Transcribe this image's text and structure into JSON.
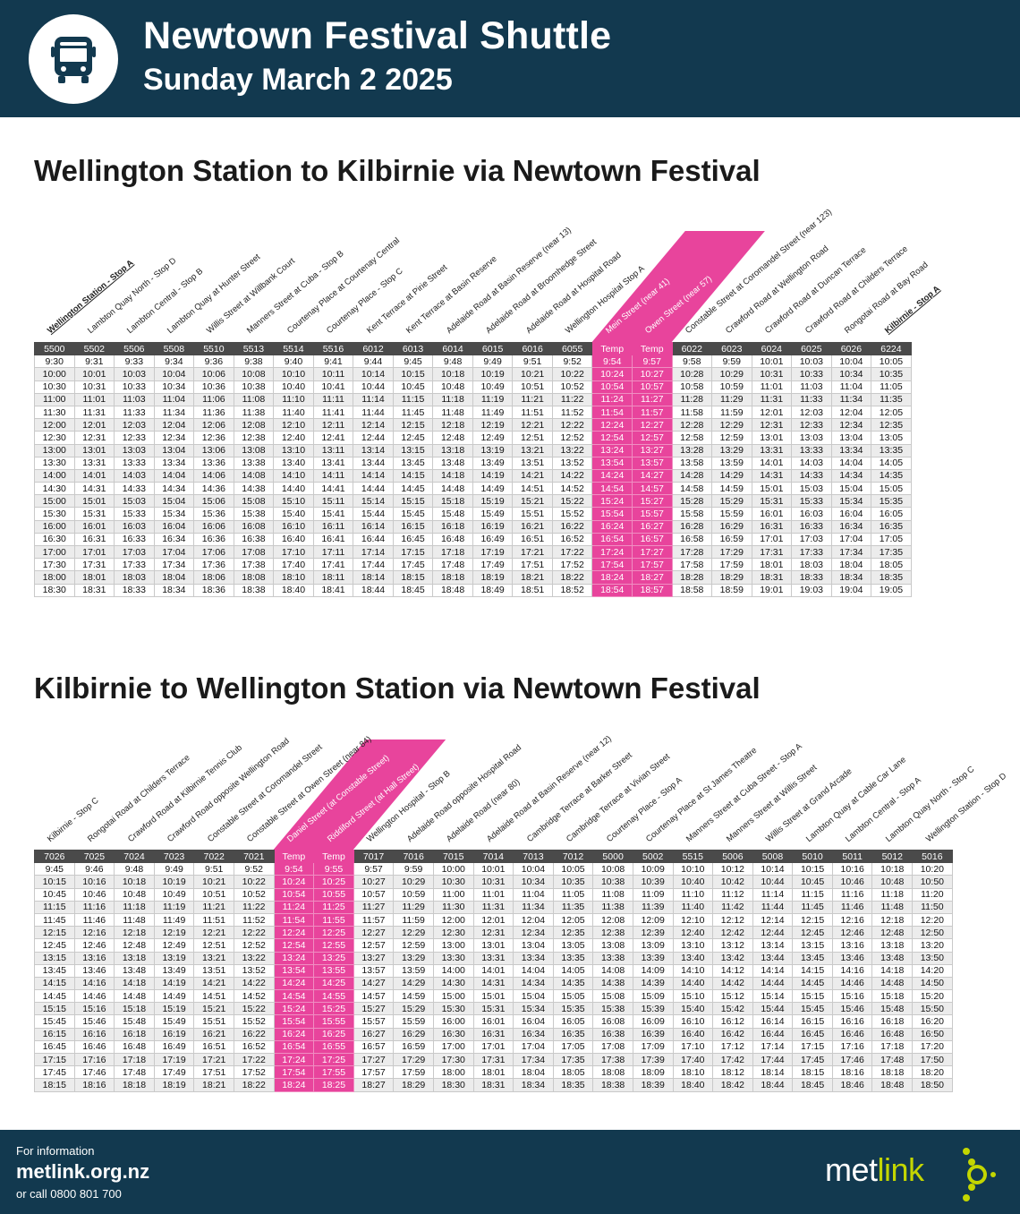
{
  "header": {
    "title": "Newtown Festival Shuttle",
    "subtitle": "Sunday March 2 2025",
    "icon": "bus-icon"
  },
  "colors": {
    "navy": "#12394f",
    "pink": "#e8449c",
    "header_row": "#4a4a4a",
    "lime": "#c3d600"
  },
  "tables": [
    {
      "title": "Wellington Station to Kilbirnie via Newtown Festival",
      "stops": [
        "Wellington Station - Stop A",
        "Lambton Quay North - Stop D",
        "Lambton Central - Stop B",
        "Lambton Quay at Hunter Street",
        "Willis Street at Willbank Court",
        "Manners Street at Cuba - Stop B",
        "Courtenay Place at Courtenay Central",
        "Courtenay Place - Stop C",
        "Kent Terrace at Pirie Street",
        "Kent Terrace at Basin Reserve",
        "Adelaide Road at Basin Reserve (near 13)",
        "Adelaide Road at Broomhedge Street",
        "Adelaide Road at Hospital Road",
        "Wellington Hospital Stop A",
        "Mein Street (near 41)",
        "Owen Street (near 57)",
        "Constable Street at Coromandel Street (near 123)",
        "Crawford Road at Wellington Road",
        "Crawford Road at Duncan Terrace",
        "Crawford Road at Childers Terrace",
        "Rongotai Road at Bay Road",
        "Kilbirnie - Stop A"
      ],
      "codes": [
        "5500",
        "5502",
        "5506",
        "5508",
        "5510",
        "5513",
        "5514",
        "5516",
        "6012",
        "6013",
        "6014",
        "6015",
        "6016",
        "6055",
        "Temp",
        "Temp",
        "6022",
        "6023",
        "6024",
        "6025",
        "6026",
        "6224"
      ],
      "rows": [
        [
          "9:30",
          "9:31",
          "9:33",
          "9:34",
          "9:36",
          "9:38",
          "9:40",
          "9:41",
          "9:44",
          "9:45",
          "9:48",
          "9:49",
          "9:51",
          "9:52",
          "9:54",
          "9:57",
          "9:58",
          "9:59",
          "10:01",
          "10:03",
          "10:04",
          "10:05"
        ],
        [
          "10:00",
          "10:01",
          "10:03",
          "10:04",
          "10:06",
          "10:08",
          "10:10",
          "10:11",
          "10:14",
          "10:15",
          "10:18",
          "10:19",
          "10:21",
          "10:22",
          "10:24",
          "10:27",
          "10:28",
          "10:29",
          "10:31",
          "10:33",
          "10:34",
          "10:35"
        ],
        [
          "10:30",
          "10:31",
          "10:33",
          "10:34",
          "10:36",
          "10:38",
          "10:40",
          "10:41",
          "10:44",
          "10:45",
          "10:48",
          "10:49",
          "10:51",
          "10:52",
          "10:54",
          "10:57",
          "10:58",
          "10:59",
          "11:01",
          "11:03",
          "11:04",
          "11:05"
        ],
        [
          "11:00",
          "11:01",
          "11:03",
          "11:04",
          "11:06",
          "11:08",
          "11:10",
          "11:11",
          "11:14",
          "11:15",
          "11:18",
          "11:19",
          "11:21",
          "11:22",
          "11:24",
          "11:27",
          "11:28",
          "11:29",
          "11:31",
          "11:33",
          "11:34",
          "11:35"
        ],
        [
          "11:30",
          "11:31",
          "11:33",
          "11:34",
          "11:36",
          "11:38",
          "11:40",
          "11:41",
          "11:44",
          "11:45",
          "11:48",
          "11:49",
          "11:51",
          "11:52",
          "11:54",
          "11:57",
          "11:58",
          "11:59",
          "12:01",
          "12:03",
          "12:04",
          "12:05"
        ],
        [
          "12:00",
          "12:01",
          "12:03",
          "12:04",
          "12:06",
          "12:08",
          "12:10",
          "12:11",
          "12:14",
          "12:15",
          "12:18",
          "12:19",
          "12:21",
          "12:22",
          "12:24",
          "12:27",
          "12:28",
          "12:29",
          "12:31",
          "12:33",
          "12:34",
          "12:35"
        ],
        [
          "12:30",
          "12:31",
          "12:33",
          "12:34",
          "12:36",
          "12:38",
          "12:40",
          "12:41",
          "12:44",
          "12:45",
          "12:48",
          "12:49",
          "12:51",
          "12:52",
          "12:54",
          "12:57",
          "12:58",
          "12:59",
          "13:01",
          "13:03",
          "13:04",
          "13:05"
        ],
        [
          "13:00",
          "13:01",
          "13:03",
          "13:04",
          "13:06",
          "13:08",
          "13:10",
          "13:11",
          "13:14",
          "13:15",
          "13:18",
          "13:19",
          "13:21",
          "13:22",
          "13:24",
          "13:27",
          "13:28",
          "13:29",
          "13:31",
          "13:33",
          "13:34",
          "13:35"
        ],
        [
          "13:30",
          "13:31",
          "13:33",
          "13:34",
          "13:36",
          "13:38",
          "13:40",
          "13:41",
          "13:44",
          "13:45",
          "13:48",
          "13:49",
          "13:51",
          "13:52",
          "13:54",
          "13:57",
          "13:58",
          "13:59",
          "14:01",
          "14:03",
          "14:04",
          "14:05"
        ],
        [
          "14:00",
          "14:01",
          "14:03",
          "14:04",
          "14:06",
          "14:08",
          "14:10",
          "14:11",
          "14:14",
          "14:15",
          "14:18",
          "14:19",
          "14:21",
          "14:22",
          "14:24",
          "14:27",
          "14:28",
          "14:29",
          "14:31",
          "14:33",
          "14:34",
          "14:35"
        ],
        [
          "14:30",
          "14:31",
          "14:33",
          "14:34",
          "14:36",
          "14:38",
          "14:40",
          "14:41",
          "14:44",
          "14:45",
          "14:48",
          "14:49",
          "14:51",
          "14:52",
          "14:54",
          "14:57",
          "14:58",
          "14:59",
          "15:01",
          "15:03",
          "15:04",
          "15:05"
        ],
        [
          "15:00",
          "15:01",
          "15:03",
          "15:04",
          "15:06",
          "15:08",
          "15:10",
          "15:11",
          "15:14",
          "15:15",
          "15:18",
          "15:19",
          "15:21",
          "15:22",
          "15:24",
          "15:27",
          "15:28",
          "15:29",
          "15:31",
          "15:33",
          "15:34",
          "15:35"
        ],
        [
          "15:30",
          "15:31",
          "15:33",
          "15:34",
          "15:36",
          "15:38",
          "15:40",
          "15:41",
          "15:44",
          "15:45",
          "15:48",
          "15:49",
          "15:51",
          "15:52",
          "15:54",
          "15:57",
          "15:58",
          "15:59",
          "16:01",
          "16:03",
          "16:04",
          "16:05"
        ],
        [
          "16:00",
          "16:01",
          "16:03",
          "16:04",
          "16:06",
          "16:08",
          "16:10",
          "16:11",
          "16:14",
          "16:15",
          "16:18",
          "16:19",
          "16:21",
          "16:22",
          "16:24",
          "16:27",
          "16:28",
          "16:29",
          "16:31",
          "16:33",
          "16:34",
          "16:35"
        ],
        [
          "16:30",
          "16:31",
          "16:33",
          "16:34",
          "16:36",
          "16:38",
          "16:40",
          "16:41",
          "16:44",
          "16:45",
          "16:48",
          "16:49",
          "16:51",
          "16:52",
          "16:54",
          "16:57",
          "16:58",
          "16:59",
          "17:01",
          "17:03",
          "17:04",
          "17:05"
        ],
        [
          "17:00",
          "17:01",
          "17:03",
          "17:04",
          "17:06",
          "17:08",
          "17:10",
          "17:11",
          "17:14",
          "17:15",
          "17:18",
          "17:19",
          "17:21",
          "17:22",
          "17:24",
          "17:27",
          "17:28",
          "17:29",
          "17:31",
          "17:33",
          "17:34",
          "17:35"
        ],
        [
          "17:30",
          "17:31",
          "17:33",
          "17:34",
          "17:36",
          "17:38",
          "17:40",
          "17:41",
          "17:44",
          "17:45",
          "17:48",
          "17:49",
          "17:51",
          "17:52",
          "17:54",
          "17:57",
          "17:58",
          "17:59",
          "18:01",
          "18:03",
          "18:04",
          "18:05"
        ],
        [
          "18:00",
          "18:01",
          "18:03",
          "18:04",
          "18:06",
          "18:08",
          "18:10",
          "18:11",
          "18:14",
          "18:15",
          "18:18",
          "18:19",
          "18:21",
          "18:22",
          "18:24",
          "18:27",
          "18:28",
          "18:29",
          "18:31",
          "18:33",
          "18:34",
          "18:35"
        ],
        [
          "18:30",
          "18:31",
          "18:33",
          "18:34",
          "18:36",
          "18:38",
          "18:40",
          "18:41",
          "18:44",
          "18:45",
          "18:48",
          "18:49",
          "18:51",
          "18:52",
          "18:54",
          "18:57",
          "18:58",
          "18:59",
          "19:01",
          "19:03",
          "19:04",
          "19:05"
        ]
      ]
    },
    {
      "title": "Kilbirnie to Wellington Station via Newtown Festival",
      "stops": [
        "Kilbirnie - Stop C",
        "Rongotai Road at Childers Terrace",
        "Crawford Road at Kilbirnie Tennis Club",
        "Crawford Road opposite Wellington Road",
        "Constable Street at Coromandel Street",
        "Constable Street at Owen Street (near 84)",
        "Daniel Street (at Constable Street)",
        "Riddiford Street (at Hall Street)",
        "Wellington Hospital - Stop B",
        "Adelaide Road opposite Hospital Road",
        "Adelaide Road (near 80)",
        "Adelaide Road at Basin Reserve (near 12)",
        "Cambridge Terrace at Barker Street",
        "Cambridge Terrace at Vivian Street",
        "Courtenay Place - Stop A",
        "Courtenay Place at St James Theatre",
        "Manners Street at Cuba Street - Stop A",
        "Manners Street at Willis Street",
        "Willis Street at Grand Arcade",
        "Lambton Quay at Cable Car Lane",
        "Lambton Central - Stop A",
        "Lambton Quay North - Stop C",
        "Wellington Station - Stop D"
      ],
      "codes": [
        "7026",
        "7025",
        "7024",
        "7023",
        "7022",
        "7021",
        "Temp",
        "Temp",
        "7017",
        "7016",
        "7015",
        "7014",
        "7013",
        "7012",
        "5000",
        "5002",
        "5515",
        "5006",
        "5008",
        "5010",
        "5011",
        "5012",
        "5016"
      ],
      "rows": [
        [
          "9:45",
          "9:46",
          "9:48",
          "9:49",
          "9:51",
          "9:52",
          "9:54",
          "9:55",
          "9:57",
          "9:59",
          "10:00",
          "10:01",
          "10:04",
          "10:05",
          "10:08",
          "10:09",
          "10:10",
          "10:12",
          "10:14",
          "10:15",
          "10:16",
          "10:18",
          "10:20"
        ],
        [
          "10:15",
          "10:16",
          "10:18",
          "10:19",
          "10:21",
          "10:22",
          "10:24",
          "10:25",
          "10:27",
          "10:29",
          "10:30",
          "10:31",
          "10:34",
          "10:35",
          "10:38",
          "10:39",
          "10:40",
          "10:42",
          "10:44",
          "10:45",
          "10:46",
          "10:48",
          "10:50"
        ],
        [
          "10:45",
          "10:46",
          "10:48",
          "10:49",
          "10:51",
          "10:52",
          "10:54",
          "10:55",
          "10:57",
          "10:59",
          "11:00",
          "11:01",
          "11:04",
          "11:05",
          "11:08",
          "11:09",
          "11:10",
          "11:12",
          "11:14",
          "11:15",
          "11:16",
          "11:18",
          "11:20"
        ],
        [
          "11:15",
          "11:16",
          "11:18",
          "11:19",
          "11:21",
          "11:22",
          "11:24",
          "11:25",
          "11:27",
          "11:29",
          "11:30",
          "11:31",
          "11:34",
          "11:35",
          "11:38",
          "11:39",
          "11:40",
          "11:42",
          "11:44",
          "11:45",
          "11:46",
          "11:48",
          "11:50"
        ],
        [
          "11:45",
          "11:46",
          "11:48",
          "11:49",
          "11:51",
          "11:52",
          "11:54",
          "11:55",
          "11:57",
          "11:59",
          "12:00",
          "12:01",
          "12:04",
          "12:05",
          "12:08",
          "12:09",
          "12:10",
          "12:12",
          "12:14",
          "12:15",
          "12:16",
          "12:18",
          "12:20"
        ],
        [
          "12:15",
          "12:16",
          "12:18",
          "12:19",
          "12:21",
          "12:22",
          "12:24",
          "12:25",
          "12:27",
          "12:29",
          "12:30",
          "12:31",
          "12:34",
          "12:35",
          "12:38",
          "12:39",
          "12:40",
          "12:42",
          "12:44",
          "12:45",
          "12:46",
          "12:48",
          "12:50"
        ],
        [
          "12:45",
          "12:46",
          "12:48",
          "12:49",
          "12:51",
          "12:52",
          "12:54",
          "12:55",
          "12:57",
          "12:59",
          "13:00",
          "13:01",
          "13:04",
          "13:05",
          "13:08",
          "13:09",
          "13:10",
          "13:12",
          "13:14",
          "13:15",
          "13:16",
          "13:18",
          "13:20"
        ],
        [
          "13:15",
          "13:16",
          "13:18",
          "13:19",
          "13:21",
          "13:22",
          "13:24",
          "13:25",
          "13:27",
          "13:29",
          "13:30",
          "13:31",
          "13:34",
          "13:35",
          "13:38",
          "13:39",
          "13:40",
          "13:42",
          "13:44",
          "13:45",
          "13:46",
          "13:48",
          "13:50"
        ],
        [
          "13:45",
          "13:46",
          "13:48",
          "13:49",
          "13:51",
          "13:52",
          "13:54",
          "13:55",
          "13:57",
          "13:59",
          "14:00",
          "14:01",
          "14:04",
          "14:05",
          "14:08",
          "14:09",
          "14:10",
          "14:12",
          "14:14",
          "14:15",
          "14:16",
          "14:18",
          "14:20"
        ],
        [
          "14:15",
          "14:16",
          "14:18",
          "14:19",
          "14:21",
          "14:22",
          "14:24",
          "14:25",
          "14:27",
          "14:29",
          "14:30",
          "14:31",
          "14:34",
          "14:35",
          "14:38",
          "14:39",
          "14:40",
          "14:42",
          "14:44",
          "14:45",
          "14:46",
          "14:48",
          "14:50"
        ],
        [
          "14:45",
          "14:46",
          "14:48",
          "14:49",
          "14:51",
          "14:52",
          "14:54",
          "14:55",
          "14:57",
          "14:59",
          "15:00",
          "15:01",
          "15:04",
          "15:05",
          "15:08",
          "15:09",
          "15:10",
          "15:12",
          "15:14",
          "15:15",
          "15:16",
          "15:18",
          "15:20"
        ],
        [
          "15:15",
          "15:16",
          "15:18",
          "15:19",
          "15:21",
          "15:22",
          "15:24",
          "15:25",
          "15:27",
          "15:29",
          "15:30",
          "15:31",
          "15:34",
          "15:35",
          "15:38",
          "15:39",
          "15:40",
          "15:42",
          "15:44",
          "15:45",
          "15:46",
          "15:48",
          "15:50"
        ],
        [
          "15:45",
          "15:46",
          "15:48",
          "15:49",
          "15:51",
          "15:52",
          "15:54",
          "15:55",
          "15:57",
          "15:59",
          "16:00",
          "16:01",
          "16:04",
          "16:05",
          "16:08",
          "16:09",
          "16:10",
          "16:12",
          "16:14",
          "16:15",
          "16:16",
          "16:18",
          "16:20"
        ],
        [
          "16:15",
          "16:16",
          "16:18",
          "16:19",
          "16:21",
          "16:22",
          "16:24",
          "16:25",
          "16:27",
          "16:29",
          "16:30",
          "16:31",
          "16:34",
          "16:35",
          "16:38",
          "16:39",
          "16:40",
          "16:42",
          "16:44",
          "16:45",
          "16:46",
          "16:48",
          "16:50"
        ],
        [
          "16:45",
          "16:46",
          "16:48",
          "16:49",
          "16:51",
          "16:52",
          "16:54",
          "16:55",
          "16:57",
          "16:59",
          "17:00",
          "17:01",
          "17:04",
          "17:05",
          "17:08",
          "17:09",
          "17:10",
          "17:12",
          "17:14",
          "17:15",
          "17:16",
          "17:18",
          "17:20"
        ],
        [
          "17:15",
          "17:16",
          "17:18",
          "17:19",
          "17:21",
          "17:22",
          "17:24",
          "17:25",
          "17:27",
          "17:29",
          "17:30",
          "17:31",
          "17:34",
          "17:35",
          "17:38",
          "17:39",
          "17:40",
          "17:42",
          "17:44",
          "17:45",
          "17:46",
          "17:48",
          "17:50"
        ],
        [
          "17:45",
          "17:46",
          "17:48",
          "17:49",
          "17:51",
          "17:52",
          "17:54",
          "17:55",
          "17:57",
          "17:59",
          "18:00",
          "18:01",
          "18:04",
          "18:05",
          "18:08",
          "18:09",
          "18:10",
          "18:12",
          "18:14",
          "18:15",
          "18:16",
          "18:18",
          "18:20"
        ],
        [
          "18:15",
          "18:16",
          "18:18",
          "18:19",
          "18:21",
          "18:22",
          "18:24",
          "18:25",
          "18:27",
          "18:29",
          "18:30",
          "18:31",
          "18:34",
          "18:35",
          "18:38",
          "18:39",
          "18:40",
          "18:42",
          "18:44",
          "18:45",
          "18:46",
          "18:48",
          "18:50"
        ]
      ]
    }
  ],
  "footer": {
    "info_label": "For information",
    "url": "metlink.org.nz",
    "phone": "or call 0800 801 700",
    "logo_prefix": "met",
    "logo_suffix": "link"
  }
}
